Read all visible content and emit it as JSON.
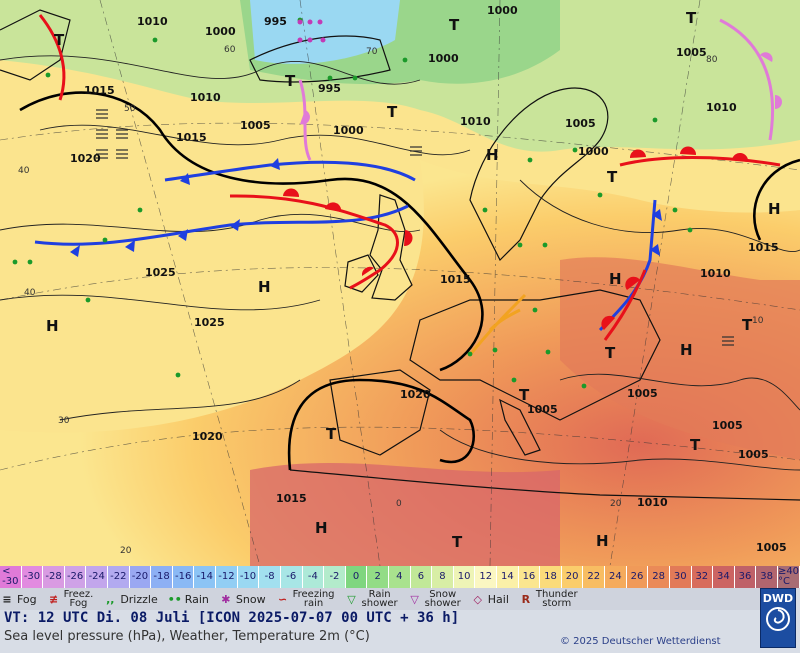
{
  "map": {
    "highs": [
      "H",
      "H",
      "H",
      "H",
      "H",
      "H",
      "H",
      "H"
    ],
    "lows": [
      "T",
      "T",
      "T",
      "T",
      "T",
      "T",
      "T",
      "T",
      "T",
      "T",
      "T",
      "T"
    ],
    "isobar_labels": [
      "1010",
      "1000",
      "995",
      "1000",
      "1000",
      "1010",
      "1000",
      "1005",
      "1015",
      "1010",
      "1015",
      "1005",
      "1020",
      "1025",
      "1025",
      "1015",
      "1020",
      "1020",
      "1010",
      "1000",
      "1005",
      "1015",
      "995",
      "1010",
      "1005",
      "1015",
      "1005",
      "1005",
      "1010",
      "1005",
      "1005"
    ],
    "temp_labels": [
      "60",
      "70",
      "50",
      "40",
      "40",
      "30",
      "20",
      "0",
      "20",
      "10",
      "80"
    ]
  },
  "scale": {
    "cells": [
      {
        "t": "<\n-30",
        "c": "#e07ad8"
      },
      {
        "t": "-30",
        "c": "#e28be0"
      },
      {
        "t": "-28",
        "c": "#d99be2"
      },
      {
        "t": "-26",
        "c": "#cfa2e7"
      },
      {
        "t": "-24",
        "c": "#c2a6ec"
      },
      {
        "t": "-22",
        "c": "#b2aaf0"
      },
      {
        "t": "-20",
        "c": "#9aa8f2"
      },
      {
        "t": "-18",
        "c": "#8db0f4"
      },
      {
        "t": "-16",
        "c": "#8ab9f5"
      },
      {
        "t": "-14",
        "c": "#8cc4f5"
      },
      {
        "t": "-12",
        "c": "#92cef4"
      },
      {
        "t": "-10",
        "c": "#9ad8f2"
      },
      {
        "t": "-8",
        "c": "#a2e0ef"
      },
      {
        "t": "-6",
        "c": "#a8e6e6"
      },
      {
        "t": "-4",
        "c": "#ade9d8"
      },
      {
        "t": "-2",
        "c": "#b3ebcb"
      },
      {
        "t": "0",
        "c": "#7fd67f"
      },
      {
        "t": "2",
        "c": "#93dc86"
      },
      {
        "t": "4",
        "c": "#a9e28e"
      },
      {
        "t": "6",
        "c": "#c1e898"
      },
      {
        "t": "8",
        "c": "#d8eea5"
      },
      {
        "t": "10",
        "c": "#eef4b6"
      },
      {
        "t": "12",
        "c": "#fbf7c2"
      },
      {
        "t": "14",
        "c": "#fbf0a8"
      },
      {
        "t": "16",
        "c": "#fbe68f"
      },
      {
        "t": "18",
        "c": "#fbdb7a"
      },
      {
        "t": "20",
        "c": "#fbcd6b"
      },
      {
        "t": "22",
        "c": "#f8bd62"
      },
      {
        "t": "24",
        "c": "#f5ab5c"
      },
      {
        "t": "26",
        "c": "#f09a59"
      },
      {
        "t": "28",
        "c": "#ea8a58"
      },
      {
        "t": "30",
        "c": "#e27a58"
      },
      {
        "t": "32",
        "c": "#d86c5c"
      },
      {
        "t": "34",
        "c": "#cc6462"
      },
      {
        "t": "36",
        "c": "#bf6168"
      },
      {
        "t": "38",
        "c": "#b2656e"
      },
      {
        "t": "≥40\n°C",
        "c": "#a86c74"
      }
    ]
  },
  "legend": {
    "fog": "Fog",
    "freezing_fog": "Freez.\nFog",
    "drizzle": "Drizzle",
    "rain": "Rain",
    "snow": "Snow",
    "freezing_rain": "Freezing\nrain",
    "rain_shower": "Rain\nshower",
    "snow_shower": "Snow\nshower",
    "hail": "Hail",
    "thunderstorm": "Thunder\nstorm"
  },
  "footer": {
    "valid_time": "VT: 12 UTC Di.  08 Juli [ICON 2025-07-07  00 UTC + 36 h]",
    "subtitle": "Sea level pressure (hPa), Weather, Temperature 2m (°C)",
    "copyright": "© 2025 Deutscher Wetterdienst",
    "logo": "DWD"
  },
  "colors": {
    "cold_front": "#1f3fe0",
    "warm_front": "#e8101a",
    "occlusion": "#e07ad8",
    "trough": "#f2a321"
  }
}
